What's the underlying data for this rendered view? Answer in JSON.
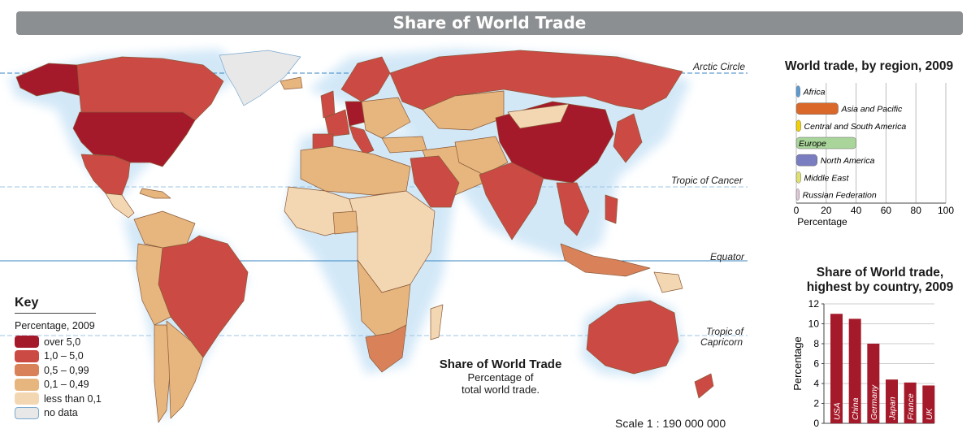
{
  "title": "Share of World Trade",
  "map_lines": {
    "arctic": "Arctic Circle",
    "cancer": "Tropic of Cancer",
    "equator": "Equator",
    "capricorn_1": "Tropic of",
    "capricorn_2": "Capricorn"
  },
  "colors": {
    "over5": "#a51a2a",
    "r1to5": "#cc4a44",
    "r05to099": "#d9825a",
    "r01to049": "#e6b67e",
    "lt01": "#f3d7b2",
    "nodata": "#e8e8e8",
    "ocean_glow": "#cfe6f7"
  },
  "key": {
    "title": "Key",
    "subtitle": "Percentage, 2009",
    "items": [
      {
        "label": "over 5,0",
        "color": "#a51a2a"
      },
      {
        "label": "1,0 – 5,0",
        "color": "#cc4a44"
      },
      {
        "label": "0,5 – 0,99",
        "color": "#d9825a"
      },
      {
        "label": "0,1 – 0,49",
        "color": "#e6b67e"
      },
      {
        "label": "less than 0,1",
        "color": "#f3d7b2"
      },
      {
        "label": "no data",
        "color": "#e8e8e8"
      }
    ]
  },
  "map_note": {
    "heading": "Share of World Trade",
    "line1": "Percentage of",
    "line2": "total world trade."
  },
  "scale": "Scale 1 : 190 000 000",
  "chart_data": [
    {
      "type": "bar",
      "orientation": "horizontal",
      "title": "World trade, by region, 2009",
      "xlabel": "Percentage",
      "xlim": [
        0,
        100
      ],
      "xticks": [
        0,
        20,
        40,
        60,
        80,
        100
      ],
      "grid": true,
      "categories": [
        "Africa",
        "Asia and Pacific",
        "Central and South America",
        "Europe",
        "North America",
        "Middle East",
        "Russian Federation"
      ],
      "values": [
        2.5,
        28,
        3,
        40,
        14,
        3,
        2
      ],
      "colors": [
        "#5b9bd5",
        "#d9682a",
        "#f2d100",
        "#a9d49a",
        "#7a7dbf",
        "#e0e070",
        "#e2c8d8"
      ]
    },
    {
      "type": "bar",
      "title": "Share of World trade, highest by country, 2009",
      "ylabel": "Percentage",
      "ylim": [
        0,
        12
      ],
      "yticks": [
        0,
        2,
        4,
        6,
        8,
        10,
        12
      ],
      "categories": [
        "USA",
        "China",
        "Germany",
        "Japan",
        "France",
        "UK"
      ],
      "values": [
        11,
        10.5,
        8,
        4.4,
        4.1,
        3.8
      ],
      "color": "#a51a2a"
    }
  ]
}
